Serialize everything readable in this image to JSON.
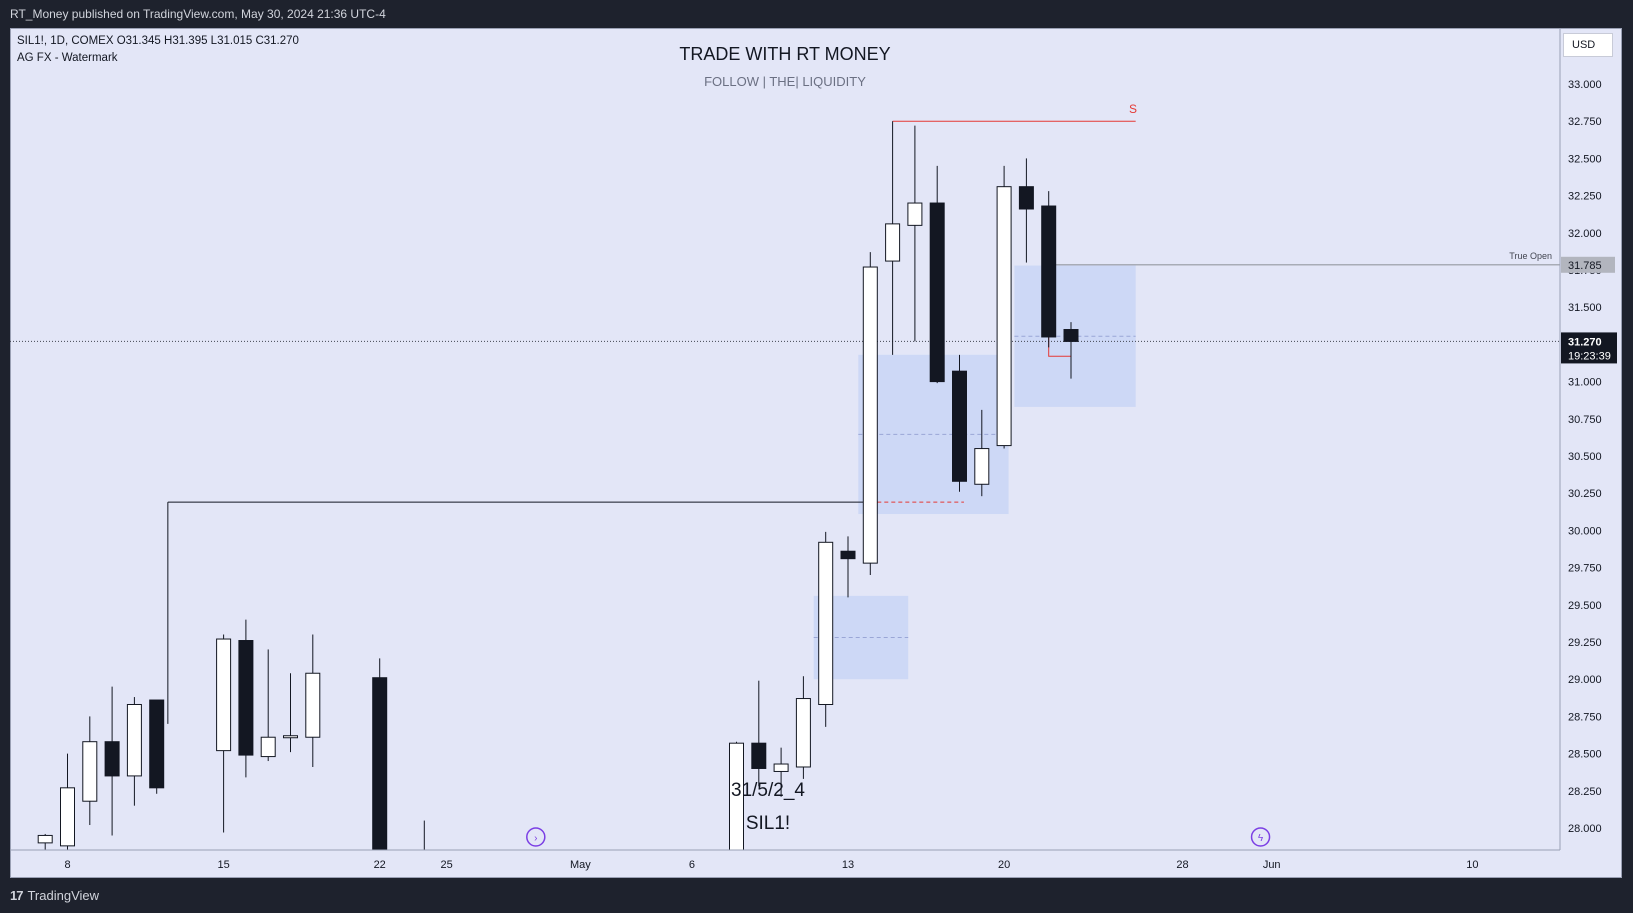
{
  "header": {
    "published": "RT_Money published on TradingView.com, May 30, 2024 21:36 UTC-4"
  },
  "symbol_info": {
    "line1": "SIL1!, 1D, COMEX  O31.345  H31.395  L31.015  C31.270",
    "line2": "AG FX - Watermark"
  },
  "watermark": {
    "title": "TRADE WITH RT MONEY",
    "subtitle": "FOLLOW   |   THE|   LIQUIDITY",
    "date_text": "31/5/2_4",
    "symbol_text": "SIL1!"
  },
  "currency": "USD",
  "annotations": {
    "s_label": "S",
    "true_open_label": "True Open",
    "true_open_price": "31.785",
    "last_price": "31.270",
    "countdown": "19:23:39"
  },
  "footer": {
    "brand": "TradingView"
  },
  "colors": {
    "bull_body": "#ffffff",
    "bear_body": "#131722",
    "zone_fill": "#c5d3f5",
    "red_line": "#e53935",
    "background": "#e3e6f7"
  },
  "chart_data": {
    "type": "candlestick",
    "y_ticks": [
      "33.000",
      "32.750",
      "32.500",
      "32.250",
      "32.000",
      "31.750",
      "31.500",
      "31.250",
      "31.000",
      "30.750",
      "30.500",
      "30.250",
      "30.000",
      "29.750",
      "29.500",
      "29.250",
      "29.000",
      "28.750",
      "28.500",
      "28.250",
      "28.000"
    ],
    "x_ticks": [
      {
        "label": "8",
        "day": 0
      },
      {
        "label": "15",
        "day": 7
      },
      {
        "label": "22",
        "day": 14
      },
      {
        "label": "25",
        "day": 17
      },
      {
        "label": "May",
        "day": 23
      },
      {
        "label": "6",
        "day": 28
      },
      {
        "label": "13",
        "day": 35
      },
      {
        "label": "20",
        "day": 42
      },
      {
        "label": "28",
        "day": 50
      },
      {
        "label": "Jun",
        "day": 54
      },
      {
        "label": "10",
        "day": 63
      }
    ],
    "candles": [
      {
        "day": -1,
        "o": 27.9,
        "h": 27.96,
        "l": 27.8,
        "c": 27.95
      },
      {
        "day": 0,
        "o": 27.88,
        "h": 28.5,
        "l": 27.8,
        "c": 28.27
      },
      {
        "day": 1,
        "o": 28.18,
        "h": 28.75,
        "l": 28.02,
        "c": 28.58
      },
      {
        "day": 2,
        "o": 28.58,
        "h": 28.95,
        "l": 27.95,
        "c": 28.35
      },
      {
        "day": 3,
        "o": 28.35,
        "h": 28.88,
        "l": 28.15,
        "c": 28.83
      },
      {
        "day": 4,
        "o": 28.86,
        "h": 28.86,
        "l": 28.23,
        "c": 28.27
      },
      {
        "day": 7,
        "o": 28.52,
        "h": 29.3,
        "l": 27.97,
        "c": 29.27
      },
      {
        "day": 8,
        "o": 29.26,
        "h": 29.4,
        "l": 28.34,
        "c": 28.49
      },
      {
        "day": 9,
        "o": 28.48,
        "h": 29.2,
        "l": 28.45,
        "c": 28.61
      },
      {
        "day": 10,
        "o": 28.61,
        "h": 29.04,
        "l": 28.51,
        "c": 28.62
      },
      {
        "day": 11,
        "o": 28.61,
        "h": 29.3,
        "l": 28.41,
        "c": 29.04
      },
      {
        "day": 14,
        "o": 29.01,
        "h": 29.14,
        "l": 27.7,
        "c": 27.7
      },
      {
        "day": 15,
        "o": 27.76,
        "h": 27.8,
        "l": 27.7,
        "c": 27.72
      },
      {
        "day": 16,
        "o": 27.75,
        "h": 28.05,
        "l": 27.7,
        "c": 27.85
      },
      {
        "day": 22,
        "o": 27.8,
        "h": 27.85,
        "l": 27.7,
        "c": 27.72
      },
      {
        "day": 30,
        "o": 27.7,
        "h": 28.58,
        "l": 27.7,
        "c": 28.57
      },
      {
        "day": 31,
        "o": 28.57,
        "h": 28.99,
        "l": 28.28,
        "c": 28.4
      },
      {
        "day": 32,
        "o": 28.38,
        "h": 28.54,
        "l": 28.21,
        "c": 28.43
      },
      {
        "day": 33,
        "o": 28.41,
        "h": 29.02,
        "l": 28.33,
        "c": 28.87
      },
      {
        "day": 34,
        "o": 28.83,
        "h": 29.99,
        "l": 28.68,
        "c": 29.92
      },
      {
        "day": 35,
        "o": 29.86,
        "h": 29.96,
        "l": 29.55,
        "c": 29.81
      },
      {
        "day": 36,
        "o": 29.78,
        "h": 31.87,
        "l": 29.7,
        "c": 31.77
      },
      {
        "day": 37,
        "o": 31.81,
        "h": 32.75,
        "l": 31.18,
        "c": 32.06
      },
      {
        "day": 38,
        "o": 32.05,
        "h": 32.72,
        "l": 31.27,
        "c": 32.2
      },
      {
        "day": 39,
        "o": 32.2,
        "h": 32.45,
        "l": 30.99,
        "c": 31.0
      },
      {
        "day": 40,
        "o": 31.07,
        "h": 31.18,
        "l": 30.26,
        "c": 30.33
      },
      {
        "day": 41,
        "o": 30.31,
        "h": 30.81,
        "l": 30.23,
        "c": 30.55
      },
      {
        "day": 42,
        "o": 30.57,
        "h": 32.45,
        "l": 30.55,
        "c": 32.31
      },
      {
        "day": 43,
        "o": 32.31,
        "h": 32.5,
        "l": 31.8,
        "c": 32.16
      },
      {
        "day": 44,
        "o": 32.18,
        "h": 32.28,
        "l": 31.23,
        "c": 31.3
      },
      {
        "day": 45,
        "o": 31.35,
        "h": 31.4,
        "l": 31.02,
        "c": 31.27
      }
    ],
    "zones": [
      {
        "day_from": 34,
        "day_to": 37.7,
        "top": 29.56,
        "bottom": 29.0
      },
      {
        "day_from": 36,
        "day_to": 42.2,
        "top": 31.18,
        "bottom": 30.11
      },
      {
        "day_from": 43,
        "day_to": 47.9,
        "top": 31.78,
        "bottom": 30.83
      }
    ],
    "levels": {
      "s_high": 32.75,
      "true_open": 31.785,
      "mid_line": 30.19,
      "last": 31.27
    }
  }
}
